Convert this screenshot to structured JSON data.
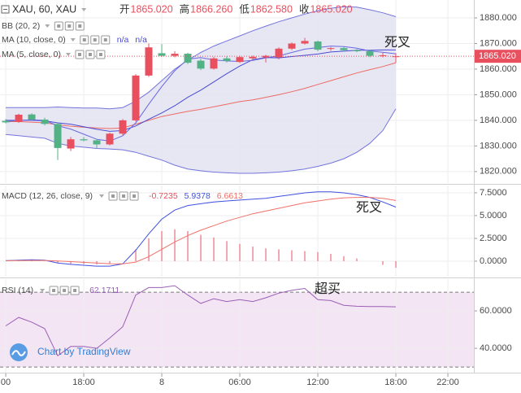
{
  "chart_data": [
    {
      "type": "candlestick",
      "symbol": "XAU, 60, XAU",
      "ohlc": [
        {
          "label": "开",
          "value": "1865.020"
        },
        {
          "label": "高",
          "value": "1866.260"
        },
        {
          "label": "低",
          "value": "1862.580"
        },
        {
          "label": "收",
          "value": "1865.020"
        }
      ],
      "x": [
        -12,
        -11,
        -10,
        -9,
        -8,
        -7,
        -6,
        -5,
        -4,
        -3,
        -2,
        -1,
        0,
        1,
        2,
        3,
        4,
        5,
        6,
        7,
        8,
        9,
        10,
        11,
        12,
        13,
        14,
        15,
        16,
        17,
        18
      ],
      "open": [
        1839.8,
        1839.4,
        1842.3,
        1840.3,
        1838.6,
        1829,
        1832.6,
        1832.2,
        1830.6,
        1834.8,
        1840,
        1857.5,
        1866.2,
        1865.2,
        1866,
        1863.3,
        1860.2,
        1864.2,
        1862.8,
        1864.2,
        1864.6,
        1864.6,
        1868,
        1870,
        1870.8,
        1868,
        1868.2,
        1867.4,
        1867,
        1865.2,
        1865.02
      ],
      "high": [
        1840.5,
        1842.6,
        1842.8,
        1841,
        1839,
        1833.5,
        1833.5,
        1832.8,
        1835.2,
        1840.5,
        1858,
        1870,
        1869.8,
        1867,
        1866.4,
        1864,
        1864.8,
        1865,
        1865.2,
        1865.3,
        1865.6,
        1868.5,
        1870.4,
        1872.2,
        1871.2,
        1868.6,
        1868.8,
        1867.8,
        1867.6,
        1866.4,
        1866.26
      ],
      "low": [
        1838.8,
        1839,
        1840,
        1838,
        1824.5,
        1828,
        1831.8,
        1829.2,
        1830.2,
        1834.2,
        1839.5,
        1857,
        1864.8,
        1864.6,
        1862,
        1859.6,
        1859.8,
        1862.6,
        1862.4,
        1863.6,
        1862.6,
        1863.8,
        1867.4,
        1869.6,
        1867,
        1867.2,
        1866.8,
        1866.6,
        1864.6,
        1864.6,
        1862.58
      ],
      "close": [
        1839.2,
        1842.2,
        1840.3,
        1838.6,
        1829.2,
        1832.6,
        1832.2,
        1830.6,
        1834.8,
        1840,
        1857.5,
        1868.5,
        1865.2,
        1866,
        1862.5,
        1860.2,
        1864.2,
        1863.2,
        1864.7,
        1864.8,
        1865.2,
        1868,
        1870,
        1871,
        1867.6,
        1868.2,
        1867.4,
        1867,
        1865.2,
        1865.4,
        1865.02
      ],
      "up_color": "#e8505f",
      "down_color": "#53b186",
      "series": [
        {
          "name": "BB (20, 2)",
          "color": "#7474dc",
          "basis_color": "#ee6a62",
          "fill": "#e3e3f2",
          "upper": [
            1845,
            1845,
            1845,
            1845,
            1845.2,
            1845,
            1844.8,
            1844.8,
            1844.5,
            1845,
            1847.5,
            1851,
            1855.5,
            1860,
            1863.5,
            1866.5,
            1869,
            1871,
            1873,
            1875,
            1876.8,
            1878.5,
            1880,
            1881.5,
            1882.8,
            1883.8,
            1884.4,
            1884.2,
            1883.2,
            1882,
            1880.5
          ],
          "basis": [
            1839.5,
            1839.5,
            1839.3,
            1839,
            1838.3,
            1837.7,
            1837.3,
            1837,
            1836.8,
            1837,
            1838.5,
            1840,
            1841.5,
            1842.5,
            1843.5,
            1844.3,
            1845.3,
            1846.3,
            1847.3,
            1848,
            1849,
            1850,
            1851.2,
            1852.5,
            1854,
            1855.5,
            1857,
            1858.5,
            1859.8,
            1861,
            1862.5
          ],
          "lower": [
            1834.5,
            1834,
            1833.5,
            1833,
            1831,
            1830,
            1829.5,
            1829,
            1828.8,
            1828.5,
            1827.5,
            1826,
            1824.5,
            1822.5,
            1821,
            1820.3,
            1819.8,
            1819.5,
            1819.3,
            1819.3,
            1819.5,
            1819.8,
            1820.3,
            1821,
            1822,
            1823.3,
            1825,
            1827.5,
            1831,
            1836,
            1844.5
          ]
        },
        {
          "name": "MA (10, close, 0)",
          "color": "#4a4ad2",
          "status": [
            "n/a",
            "n/a"
          ],
          "values": [
            1840,
            1840,
            1840,
            1839.8,
            1839,
            1838.5,
            1837.5,
            1836.5,
            1835.7,
            1836,
            1837.8,
            1840.4,
            1842.9,
            1845.7,
            1849,
            1851.8,
            1855,
            1858.2,
            1861.2,
            1863.7,
            1864.5,
            1864.4,
            1864.9,
            1865.4,
            1865.9,
            1866.7,
            1867,
            1867.4,
            1867.4,
            1867.5,
            1867.5
          ]
        },
        {
          "name": "MA (5, close, 0)",
          "color": "#6868e0",
          "values": [
            1839.5,
            1840,
            1840.2,
            1840,
            1837.9,
            1836.6,
            1834.6,
            1832.6,
            1831.9,
            1834,
            1839,
            1846.3,
            1853.2,
            1859.4,
            1863.9,
            1864.5,
            1863.6,
            1863.2,
            1863,
            1863.4,
            1864.4,
            1865.2,
            1866.5,
            1867.8,
            1868.4,
            1869,
            1868.8,
            1868.2,
            1867.1,
            1866.6,
            1866
          ]
        }
      ],
      "last_price": {
        "value": 1865.02,
        "label": "1865.020"
      },
      "last_price_color": "#e8505f",
      "annotations": [
        "死叉"
      ],
      "xlim": [
        -12.44,
        24
      ],
      "ylim": [
        1815.5,
        1887
      ],
      "yticks": [
        {
          "value": 1820,
          "label": "1820.000"
        },
        {
          "value": 1830,
          "label": "1830.000"
        },
        {
          "value": 1840,
          "label": "1840.000"
        },
        {
          "value": 1850,
          "label": "1850.000"
        },
        {
          "value": 1860,
          "label": "1860.000"
        },
        {
          "value": 1870,
          "label": "1870.000"
        },
        {
          "value": 1880,
          "label": "1880.000"
        }
      ],
      "grid": true
    },
    {
      "type": "line",
      "title": "MACD (12, 26, close, 9)",
      "x": [
        -12,
        -11,
        -10,
        -9,
        -8,
        -7,
        -6,
        -5,
        -4,
        -3,
        -2,
        -1,
        0,
        1,
        2,
        3,
        4,
        5,
        6,
        7,
        8,
        9,
        10,
        11,
        12,
        13,
        14,
        15,
        16,
        17,
        18
      ],
      "series": [
        {
          "style": "histogram",
          "color": "#e8505f",
          "values": [
            0,
            0.04,
            0.07,
            0.02,
            -0.22,
            -0.3,
            -0.32,
            -0.35,
            -0.27,
            0,
            1.3,
            2.5,
            3.3,
            3.5,
            3.3,
            2.9,
            2.6,
            2.2,
            1.9,
            1.6,
            1.4,
            1.3,
            1.2,
            1.1,
            1.0,
            0.8,
            0.55,
            0.3,
            0,
            -0.4,
            -0.7235
          ]
        },
        {
          "color": "#3f51e0",
          "values": [
            0.05,
            0.1,
            0.15,
            0.1,
            -0.2,
            -0.35,
            -0.45,
            -0.55,
            -0.55,
            -0.3,
            1.2,
            3.0,
            4.6,
            5.6,
            6.1,
            6.3,
            6.5,
            6.6,
            6.7,
            6.8,
            6.9,
            7.1,
            7.3,
            7.5,
            7.6,
            7.6,
            7.5,
            7.3,
            7.0,
            6.5,
            5.9378
          ]
        },
        {
          "color": "#f0706a",
          "values": [
            0.05,
            0.06,
            0.08,
            0.08,
            0.02,
            -0.05,
            -0.13,
            -0.2,
            -0.28,
            -0.3,
            -0.1,
            0.5,
            1.3,
            2.1,
            2.8,
            3.4,
            3.9,
            4.4,
            4.8,
            5.2,
            5.5,
            5.8,
            6.1,
            6.4,
            6.6,
            6.8,
            6.95,
            7.0,
            7.0,
            6.9,
            6.6613
          ]
        }
      ],
      "annotations": [
        "死叉"
      ],
      "xlim": [
        -12.44,
        24
      ],
      "ylim": [
        -1.7,
        8.3
      ],
      "yticks": [
        {
          "value": 0,
          "label": "0.0000"
        },
        {
          "value": 2.5,
          "label": "2.5000"
        },
        {
          "value": 5,
          "label": "5.0000"
        },
        {
          "value": 7.5,
          "label": "7.5000"
        }
      ],
      "grid": true
    },
    {
      "type": "line",
      "title": "RSI (14)",
      "x": [
        -12,
        -11,
        -10,
        -9,
        -8,
        -7,
        -6,
        -5,
        -4,
        -3,
        -2,
        -1,
        0,
        1,
        2,
        3,
        4,
        5,
        6,
        7,
        8,
        9,
        10,
        11,
        12,
        13,
        14,
        15,
        16,
        17,
        18
      ],
      "series": [
        {
          "color": "#9a5fb5",
          "values": [
            52,
            56.5,
            54,
            50.5,
            36,
            41,
            41,
            40,
            45.5,
            51.5,
            68.5,
            72.5,
            72.5,
            73.5,
            68.5,
            64,
            66.5,
            65,
            66,
            65,
            67,
            69.5,
            71,
            72,
            66,
            65.5,
            63,
            62.5,
            62.3,
            62.3,
            62.1711
          ]
        }
      ],
      "band": [
        30,
        70
      ],
      "band_color": "#f3e5f4",
      "annotations": [
        "超买"
      ],
      "xlim": [
        -12.44,
        24
      ],
      "ylim": [
        27,
        77
      ],
      "yticks": [
        {
          "value": 40,
          "label": "40.0000"
        },
        {
          "value": 60,
          "label": "60.0000"
        }
      ],
      "xticks": [
        {
          "value": -12,
          "label": "00"
        },
        {
          "value": -6,
          "label": "18:00"
        },
        {
          "value": 0,
          "label": "8"
        },
        {
          "value": 6,
          "label": "06:00"
        },
        {
          "value": 12,
          "label": "12:00"
        },
        {
          "value": 18,
          "label": "18:00"
        },
        {
          "value": 22,
          "label": "22:00"
        }
      ],
      "grid": true
    }
  ],
  "watermark": "Chart by TradingView"
}
